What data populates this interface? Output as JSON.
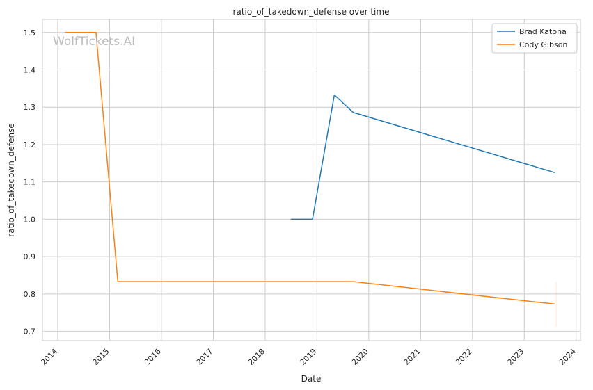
{
  "chart_data": {
    "type": "line",
    "title": "ratio_of_takedown_defense over time",
    "xlabel": "Date",
    "ylabel": "ratio_of_takedown_defense",
    "watermark": "WolfTickets.AI",
    "xlim": [
      "2013-09-15",
      "2024-02-01"
    ],
    "ylim": [
      0.675,
      1.535
    ],
    "x_ticks": [
      "2014",
      "2015",
      "2016",
      "2017",
      "2018",
      "2019",
      "2020",
      "2021",
      "2022",
      "2023",
      "2024"
    ],
    "y_ticks": [
      "0.7",
      "0.8",
      "0.9",
      "1.0",
      "1.1",
      "1.2",
      "1.3",
      "1.4",
      "1.5"
    ],
    "grid": true,
    "legend_position": "top-right",
    "series": [
      {
        "name": "Brad Katona",
        "color": "#1f77b4",
        "points": [
          {
            "x": "2018-07-01",
            "y": 1.0
          },
          {
            "x": "2018-12-01",
            "y": 1.0
          },
          {
            "x": "2019-05-04",
            "y": 1.333
          },
          {
            "x": "2019-09-14",
            "y": 1.286
          },
          {
            "x": "2023-08-05",
            "y": 1.125
          }
        ]
      },
      {
        "name": "Cody Gibson",
        "color": "#ff7f0e",
        "points": [
          {
            "x": "2014-02-22",
            "y": 1.5
          },
          {
            "x": "2014-09-27",
            "y": 1.5
          },
          {
            "x": "2015-02-28",
            "y": 0.833
          },
          {
            "x": "2019-09-14",
            "y": 0.833
          },
          {
            "x": "2023-08-05",
            "y": 0.773
          }
        ]
      }
    ]
  }
}
